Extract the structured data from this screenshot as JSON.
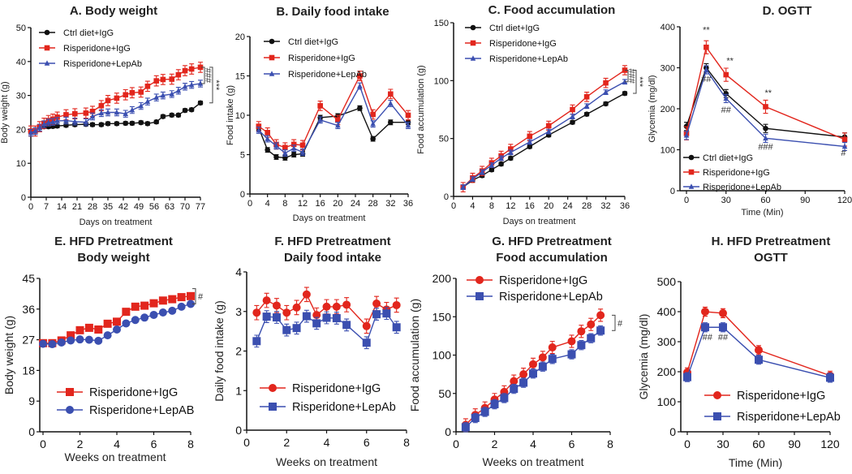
{
  "colors": {
    "ctrl": "#111111",
    "ris": "#e2261d",
    "lep": "#3b4fb0"
  },
  "chart_data": [
    {
      "id": "A",
      "type": "line",
      "title": [
        "A. Body weight"
      ],
      "xlabel": "Days on treatment",
      "ylabel": "Body weight (g)",
      "xlim": [
        0,
        77
      ],
      "ylim": [
        0,
        50
      ],
      "xticks": [
        0,
        7,
        14,
        21,
        28,
        35,
        42,
        49,
        56,
        63,
        70,
        77
      ],
      "yticks": [
        0,
        10,
        20,
        30,
        40,
        50
      ],
      "legend": "top-left",
      "series": [
        {
          "name": "Ctrl diet+IgG",
          "color": "#111111",
          "marker": "circle",
          "x": [
            0,
            2,
            4,
            6,
            8,
            10,
            12,
            16,
            20,
            25,
            28,
            32,
            35,
            39,
            43,
            46,
            50,
            53,
            57,
            60,
            64,
            67,
            70,
            73,
            77
          ],
          "y": [
            19.5,
            19.5,
            20.5,
            20.8,
            20.8,
            20.9,
            21,
            21.2,
            21.4,
            21.5,
            21.4,
            21.4,
            21.7,
            21.7,
            21.8,
            21.8,
            22,
            21.7,
            22.2,
            23.8,
            24.2,
            24.2,
            25.6,
            25.8,
            27.8
          ],
          "err": 0.5
        },
        {
          "name": "Risperidone+IgG",
          "color": "#e2261d",
          "marker": "square",
          "x": [
            0,
            2,
            4,
            6,
            8,
            10,
            12,
            16,
            20,
            25,
            28,
            32,
            35,
            39,
            43,
            46,
            50,
            53,
            57,
            60,
            64,
            67,
            70,
            73,
            77
          ],
          "y": [
            19.5,
            19.5,
            20.8,
            21.8,
            22.6,
            23,
            23.6,
            24.3,
            24.6,
            24.8,
            25.3,
            27,
            28.5,
            29.2,
            30.2,
            30.8,
            31,
            32.7,
            34.3,
            34.7,
            34.8,
            36.1,
            37.3,
            37.8,
            38.3
          ],
          "err": 1.5
        },
        {
          "name": "Risperidone+LepAb",
          "color": "#3b4fb0",
          "marker": "triangle",
          "x": [
            0,
            2,
            4,
            6,
            8,
            10,
            12,
            16,
            20,
            25,
            28,
            32,
            35,
            39,
            43,
            46,
            50,
            53,
            57,
            60,
            64,
            67,
            70,
            73,
            77
          ],
          "y": [
            19,
            19.5,
            20.5,
            21.5,
            22,
            22.2,
            22.5,
            22.6,
            22.3,
            22.1,
            23.8,
            24.8,
            25,
            25,
            24.6,
            25.7,
            26.9,
            28.2,
            29.4,
            30,
            30.4,
            31.4,
            32.6,
            33.1,
            33.5
          ],
          "err": 1
        }
      ],
      "brackets": [
        {
          "text": "###",
          "y1": 38.3,
          "y2": 33.5,
          "level": 0
        },
        {
          "text": "***",
          "y1": 38.3,
          "y2": 27.8,
          "level": 1
        }
      ],
      "annotations": []
    },
    {
      "id": "B",
      "type": "line",
      "title": [
        "B. Daily food intake"
      ],
      "xlabel": "Days on treatment",
      "ylabel": "Food intake (g)",
      "xlim": [
        0,
        36
      ],
      "ylim": [
        0,
        20
      ],
      "xticks": [
        0,
        4,
        8,
        12,
        16,
        20,
        24,
        28,
        32,
        36
      ],
      "yticks": [
        0,
        5,
        10,
        15,
        20
      ],
      "legend": "top-left",
      "series": [
        {
          "name": "Ctrl diet+IgG",
          "color": "#111111",
          "marker": "circle",
          "x": [
            2,
            4,
            6,
            8,
            10,
            12,
            16,
            20,
            25,
            28,
            32,
            36
          ],
          "y": [
            8.4,
            5.6,
            4.7,
            4.6,
            5.0,
            5.1,
            9.7,
            9.9,
            10.9,
            7.0,
            9.1,
            9.1
          ],
          "err": 0.3
        },
        {
          "name": "Risperidone+IgG",
          "color": "#e2261d",
          "marker": "square",
          "x": [
            2,
            4,
            6,
            8,
            10,
            12,
            16,
            20,
            25,
            28,
            32,
            36
          ],
          "y": [
            8.6,
            7.8,
            6.3,
            5.9,
            6.3,
            6.2,
            11.2,
            9.4,
            15.0,
            10.1,
            12.7,
            10.0
          ],
          "err": 0.6
        },
        {
          "name": "Risperidone+LepAb",
          "color": "#3b4fb0",
          "marker": "triangle",
          "x": [
            2,
            4,
            6,
            8,
            10,
            12,
            16,
            20,
            25,
            28,
            32,
            36
          ],
          "y": [
            8.1,
            7.0,
            6.1,
            5.2,
            5.8,
            5.3,
            9.4,
            8.7,
            13.7,
            8.9,
            11.5,
            8.7
          ],
          "err": 0.4
        }
      ],
      "brackets": [],
      "annotations": []
    },
    {
      "id": "C",
      "type": "line",
      "title": [
        "C. Food accumulation"
      ],
      "xlabel": "Days on treatment",
      "ylabel": "Food accumulation (g)",
      "xlim": [
        0,
        36
      ],
      "ylim": [
        0,
        150
      ],
      "xticks": [
        0,
        4,
        8,
        12,
        16,
        20,
        24,
        28,
        32,
        36
      ],
      "yticks": [
        0,
        50,
        100,
        150
      ],
      "legend": "top-left",
      "series": [
        {
          "name": "Ctrl diet+IgG",
          "color": "#111111",
          "marker": "circle",
          "x": [
            2,
            4,
            6,
            8,
            10,
            12,
            16,
            20,
            25,
            28,
            32,
            36
          ],
          "y": [
            8,
            14,
            18,
            23,
            28,
            33,
            43,
            53,
            64,
            71,
            80,
            89
          ],
          "err": 1.5
        },
        {
          "name": "Risperidone+IgG",
          "color": "#e2261d",
          "marker": "square",
          "x": [
            2,
            4,
            6,
            8,
            10,
            12,
            16,
            20,
            25,
            28,
            32,
            36
          ],
          "y": [
            8,
            16,
            22,
            29,
            35,
            41,
            52,
            61,
            75,
            86,
            98,
            109
          ],
          "err": 4
        },
        {
          "name": "Risperidone+LepAb",
          "color": "#3b4fb0",
          "marker": "triangle",
          "x": [
            2,
            4,
            6,
            8,
            10,
            12,
            16,
            20,
            25,
            28,
            32,
            36
          ],
          "y": [
            8,
            15,
            21,
            27,
            33,
            38,
            47,
            56,
            69,
            78,
            90,
            99
          ],
          "err": 2
        }
      ],
      "brackets": [
        {
          "text": "###",
          "y1": 109,
          "y2": 99,
          "level": 0
        },
        {
          "text": "***",
          "y1": 109,
          "y2": 89,
          "level": 1
        }
      ],
      "annotations": []
    },
    {
      "id": "D",
      "type": "line",
      "title": [
        "D. OGTT"
      ],
      "xlabel": "Time (Min)",
      "ylabel": "Glycemia (mg/dl)",
      "xlim": [
        -5,
        120
      ],
      "ylim": [
        0,
        400
      ],
      "xticks": [
        0,
        30,
        60,
        90,
        120
      ],
      "yticks": [
        0,
        100,
        200,
        300,
        400
      ],
      "legend": "bottom-left",
      "series": [
        {
          "name": "Ctrl diet+IgG",
          "color": "#111111",
          "marker": "circle",
          "x": [
            0,
            15,
            30,
            60,
            120
          ],
          "y": [
            157,
            300,
            237,
            152,
            131
          ],
          "err": 10
        },
        {
          "name": "Risperidone+IgG",
          "color": "#e2261d",
          "marker": "square",
          "x": [
            0,
            15,
            30,
            60,
            120
          ],
          "y": [
            140,
            350,
            283,
            205,
            125
          ],
          "err": 16
        },
        {
          "name": "Risperidone+LepAb",
          "color": "#3b4fb0",
          "marker": "triangle",
          "x": [
            0,
            15,
            30,
            60,
            120
          ],
          "y": [
            135,
            295,
            225,
            128,
            108
          ],
          "err": 10
        }
      ],
      "brackets": [],
      "annotations": [
        {
          "text": "**",
          "x": 15,
          "y": 385
        },
        {
          "text": "**",
          "x": 33,
          "y": 310
        },
        {
          "text": "**",
          "x": 62,
          "y": 232
        },
        {
          "text": "##",
          "x": 15,
          "y": 265
        },
        {
          "text": "##",
          "x": 30,
          "y": 190
        },
        {
          "text": "###",
          "x": 60,
          "y": 100
        },
        {
          "text": "#",
          "x": 119,
          "y": 85
        }
      ]
    },
    {
      "id": "E",
      "type": "line",
      "title": [
        "E. HFD Pretreatment",
        "Body weight"
      ],
      "xlabel": "Weeks on treatment",
      "ylabel": "Body weight (g)",
      "xlim": [
        -0.2,
        8
      ],
      "ylim": [
        0,
        45
      ],
      "xticks": [
        0,
        2,
        4,
        6,
        8
      ],
      "yticks": [
        0,
        9,
        18,
        27,
        36,
        45
      ],
      "legend": "bottom-left",
      "series": [
        {
          "name": "Risperidone+IgG",
          "color": "#e2261d",
          "marker": "square",
          "x": [
            0,
            0.5,
            1,
            1.5,
            2,
            2.5,
            3,
            3.5,
            4,
            4.5,
            5,
            5.5,
            6,
            6.5,
            7,
            7.5,
            8
          ],
          "y": [
            26,
            26,
            26.8,
            28.3,
            29.8,
            30.5,
            30,
            31.7,
            32.3,
            35.2,
            36.7,
            37,
            37.7,
            38.5,
            38.9,
            39.5,
            39.8
          ],
          "err": 0.9
        },
        {
          "name": "Risperidone+LepAB",
          "color": "#3b4fb0",
          "marker": "circle",
          "x": [
            0,
            0.5,
            1,
            1.5,
            2,
            2.5,
            3,
            3.5,
            4,
            4.5,
            5,
            5.5,
            6,
            6.5,
            7,
            7.5,
            8
          ],
          "y": [
            25.8,
            25.7,
            26.2,
            26.8,
            27.1,
            27,
            26.7,
            28.3,
            30,
            31.8,
            32.8,
            33.5,
            34.3,
            35,
            35.5,
            36.7,
            37.5
          ],
          "err": 0.8
        }
      ],
      "brackets": [
        {
          "text": "#",
          "y1": 42,
          "y2": 37.5,
          "level": 0
        }
      ],
      "annotations": []
    },
    {
      "id": "F",
      "type": "line",
      "title": [
        "F. HFD Pretreatment",
        "Daily food intake"
      ],
      "xlabel": "Weeks on treatment",
      "ylabel": "Daily food intake (g)",
      "xlim": [
        0,
        8
      ],
      "ylim": [
        0,
        4
      ],
      "xticks": [
        0,
        2,
        4,
        6,
        8
      ],
      "yticks": [
        0,
        1,
        2,
        3,
        4
      ],
      "legend": "bottom-left",
      "series": [
        {
          "name": "Risperidone+IgG",
          "color": "#e2261d",
          "marker": "circle",
          "x": [
            0.5,
            1,
            1.5,
            2,
            2.5,
            3,
            3.5,
            4,
            4.5,
            5,
            6,
            6.5,
            7,
            7.5
          ],
          "y": [
            2.97,
            3.28,
            3.15,
            2.97,
            3.1,
            3.43,
            2.91,
            3.12,
            3.12,
            3.17,
            2.63,
            3.2,
            3.05,
            3.16
          ],
          "err": 0.18
        },
        {
          "name": "Risperidone+LepAb",
          "color": "#3b4fb0",
          "marker": "square",
          "x": [
            0.5,
            1,
            1.5,
            2,
            2.5,
            3,
            3.5,
            4,
            4.5,
            5,
            6,
            6.5,
            7,
            7.5
          ],
          "y": [
            2.25,
            2.87,
            2.85,
            2.53,
            2.58,
            2.88,
            2.7,
            2.84,
            2.83,
            2.66,
            2.21,
            2.93,
            2.95,
            2.6
          ],
          "err": 0.15
        }
      ],
      "brackets": [],
      "annotations": []
    },
    {
      "id": "G",
      "type": "line",
      "title": [
        "G. HFD Pretreatment",
        "Food accumulation"
      ],
      "xlabel": "Weeks on treatment",
      "ylabel": "Food accumulation (g)",
      "xlim": [
        0,
        8
      ],
      "ylim": [
        0,
        200
      ],
      "xticks": [
        0,
        2,
        4,
        6,
        8
      ],
      "yticks": [
        0,
        50,
        100,
        150,
        200
      ],
      "legend": "top-left",
      "series": [
        {
          "name": "Risperidone+IgG",
          "color": "#e2261d",
          "marker": "circle",
          "x": [
            0.5,
            1,
            1.5,
            2,
            2.5,
            3,
            3.5,
            4,
            4.5,
            5,
            6,
            6.5,
            7,
            7.5
          ],
          "y": [
            9,
            22,
            31,
            42,
            52,
            66,
            75,
            88,
            97,
            110,
            118,
            131,
            140,
            152
          ],
          "err": 8
        },
        {
          "name": "Risperidone+LepAb",
          "color": "#3b4fb0",
          "marker": "square",
          "x": [
            0.5,
            1,
            1.5,
            2,
            2.5,
            3,
            3.5,
            4,
            4.5,
            5,
            6,
            6.5,
            7,
            7.5
          ],
          "y": [
            6,
            18,
            26,
            36,
            44,
            56,
            64,
            76,
            85,
            95,
            101,
            113,
            122,
            132
          ],
          "err": 6
        }
      ],
      "brackets": [
        {
          "text": "#",
          "y1": 152,
          "y2": 132,
          "level": 0
        }
      ],
      "annotations": []
    },
    {
      "id": "H",
      "type": "line",
      "title": [
        "H. HFD Pretreatment",
        "OGTT"
      ],
      "xlabel": "Time (Min)",
      "ylabel": "Glycemia (mg/dl)",
      "xlim": [
        -5,
        120
      ],
      "ylim": [
        0,
        500
      ],
      "xticks": [
        0,
        30,
        60,
        90,
        120
      ],
      "yticks": [
        0,
        100,
        200,
        300,
        400,
        500
      ],
      "legend": "bottom-left",
      "series": [
        {
          "name": "Risperidone+IgG",
          "color": "#e2261d",
          "marker": "circle",
          "x": [
            0,
            15,
            30,
            60,
            120
          ],
          "y": [
            198,
            400,
            395,
            272,
            187
          ],
          "err": 15
        },
        {
          "name": "Risperidone+LepAb",
          "color": "#3b4fb0",
          "marker": "square",
          "x": [
            0,
            15,
            30,
            60,
            120
          ],
          "y": [
            182,
            348,
            348,
            240,
            180
          ],
          "err": 15
        }
      ],
      "brackets": [],
      "annotations": [
        {
          "text": "##",
          "x": 17,
          "y": 305
        },
        {
          "text": "##",
          "x": 30,
          "y": 305
        }
      ]
    }
  ]
}
